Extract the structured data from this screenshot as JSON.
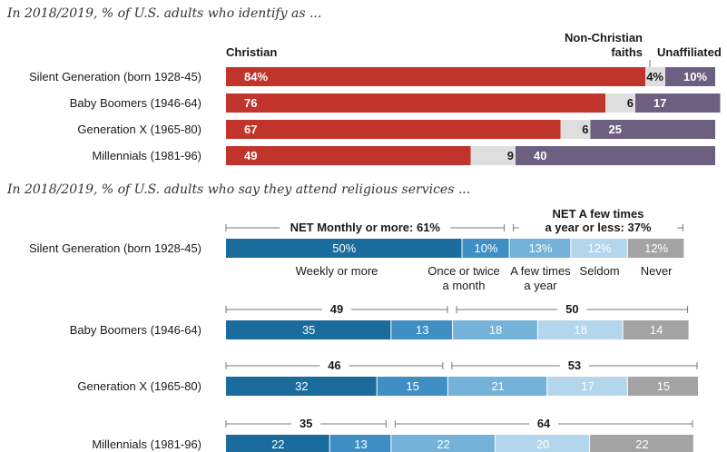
{
  "chart_data": [
    {
      "type": "bar",
      "stacked": true,
      "orientation": "horizontal",
      "subtitle": "In 2018/2019, % of U.S. adults who identify as ...",
      "categories": [
        "Silent Generation (born 1928-45)",
        "Baby Boomers (1946-64)",
        "Generation X (1965-80)",
        "Millennials (1981-96)"
      ],
      "series": [
        {
          "name": "Christian",
          "values": [
            84,
            76,
            67,
            49
          ],
          "labels": [
            "84%",
            "76",
            "67",
            "49"
          ],
          "color": "#c0342b"
        },
        {
          "name": "Non-Christian faiths",
          "values": [
            4,
            6,
            6,
            9
          ],
          "labels": [
            "4%",
            "6",
            "6",
            "9"
          ],
          "color": "#dedede"
        },
        {
          "name": "Unaffiliated",
          "values": [
            10,
            17,
            25,
            40
          ],
          "labels": [
            "10%",
            "17",
            "25",
            "40"
          ],
          "color": "#6d5f80"
        }
      ],
      "legend_labels": {
        "christian": "Christian",
        "non_christian_1": "Non-Christian",
        "non_christian_2": "faiths",
        "unaffiliated": "Unaffiliated"
      }
    },
    {
      "type": "bar",
      "stacked": true,
      "orientation": "horizontal",
      "subtitle": "In 2018/2019, % of U.S. adults who say they attend religious services ...",
      "categories": [
        "Silent Generation (born 1928-45)",
        "Baby Boomers (1946-64)",
        "Generation X (1965-80)",
        "Millennials (1981-96)"
      ],
      "series": [
        {
          "name": "Weekly or more",
          "values": [
            50,
            35,
            32,
            22
          ],
          "labels": [
            "50%",
            "35",
            "32",
            "22"
          ],
          "color": "#1a6c9c"
        },
        {
          "name": "Once or twice a month",
          "values": [
            10,
            13,
            15,
            13
          ],
          "labels": [
            "10%",
            "13",
            "15",
            "13"
          ],
          "color": "#3f8fc4"
        },
        {
          "name": "A few times a year",
          "values": [
            13,
            18,
            21,
            22
          ],
          "labels": [
            "13%",
            "18",
            "21",
            "22"
          ],
          "color": "#74b2d9"
        },
        {
          "name": "Seldom",
          "values": [
            12,
            18,
            17,
            20
          ],
          "labels": [
            "12%",
            "18",
            "17",
            "20"
          ],
          "color": "#b3d6ec"
        },
        {
          "name": "Never",
          "values": [
            12,
            14,
            15,
            22
          ],
          "labels": [
            "12%",
            "14",
            "15",
            "22"
          ],
          "color": "#a3a3a3"
        }
      ],
      "series_label_lines": [
        [
          "Weekly or more"
        ],
        [
          "Once or twice",
          "a month"
        ],
        [
          "A few times",
          "a year"
        ],
        [
          "Seldom"
        ],
        [
          "Never"
        ]
      ],
      "net_monthly": {
        "values": [
          61,
          49,
          46,
          35
        ],
        "labels": [
          "NET Monthly or more: 61%",
          "49",
          "46",
          "35"
        ]
      },
      "net_few": {
        "values": [
          37,
          50,
          53,
          64
        ],
        "labels_first": [
          "NET A few times",
          "a year or less: 37%"
        ],
        "labels": [
          "",
          "50",
          "53",
          "64"
        ]
      }
    }
  ]
}
